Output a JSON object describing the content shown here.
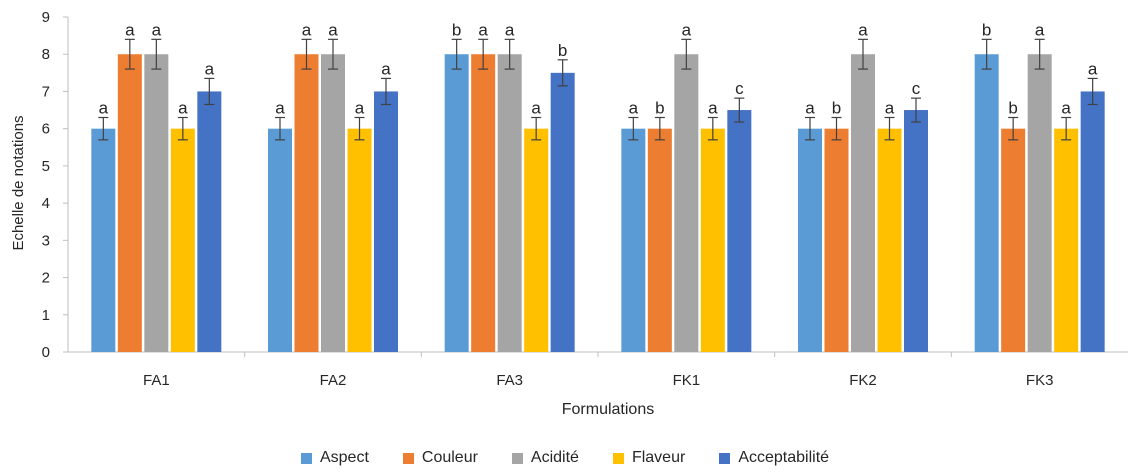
{
  "chart_data": {
    "type": "bar",
    "title": "",
    "xlabel": "Formulations",
    "ylabel": "Echelle de notations",
    "ylim": [
      0,
      9
    ],
    "yticks": [
      0,
      1,
      2,
      3,
      4,
      5,
      6,
      7,
      8,
      9
    ],
    "grid": false,
    "legend_position": "bottom",
    "categories": [
      "FA1",
      "FA2",
      "FA3",
      "FK1",
      "FK2",
      "FK3"
    ],
    "series": [
      {
        "name": "Aspect",
        "color": "#5B9BD5",
        "values": [
          6,
          6,
          8,
          6,
          6,
          8
        ],
        "error": [
          0.3,
          0.3,
          0.4,
          0.3,
          0.3,
          0.4
        ],
        "labels": [
          "a",
          "a",
          "b",
          "a",
          "a",
          "b"
        ]
      },
      {
        "name": "Couleur",
        "color": "#ED7D31",
        "values": [
          8,
          8,
          8,
          6,
          6,
          6
        ],
        "error": [
          0.4,
          0.4,
          0.4,
          0.3,
          0.3,
          0.3
        ],
        "labels": [
          "a",
          "a",
          "a",
          "b",
          "b",
          "b"
        ]
      },
      {
        "name": "Acidité",
        "color": "#A5A5A5",
        "values": [
          8,
          8,
          8,
          8,
          8,
          8
        ],
        "error": [
          0.4,
          0.4,
          0.4,
          0.4,
          0.4,
          0.4
        ],
        "labels": [
          "a",
          "a",
          "a",
          "a",
          "a",
          "a"
        ]
      },
      {
        "name": "Flaveur",
        "color": "#FFC000",
        "values": [
          6,
          6,
          6,
          6,
          6,
          6
        ],
        "error": [
          0.3,
          0.3,
          0.3,
          0.3,
          0.3,
          0.3
        ],
        "labels": [
          "a",
          "a",
          "a",
          "a",
          "a",
          "a"
        ]
      },
      {
        "name": "Acceptabilité",
        "color": "#4472C4",
        "values": [
          7,
          7,
          7.5,
          6.5,
          6.5,
          7
        ],
        "error": [
          0.35,
          0.35,
          0.35,
          0.32,
          0.32,
          0.35
        ],
        "labels": [
          "a",
          "a",
          "b",
          "c",
          "c",
          "a"
        ]
      }
    ]
  }
}
